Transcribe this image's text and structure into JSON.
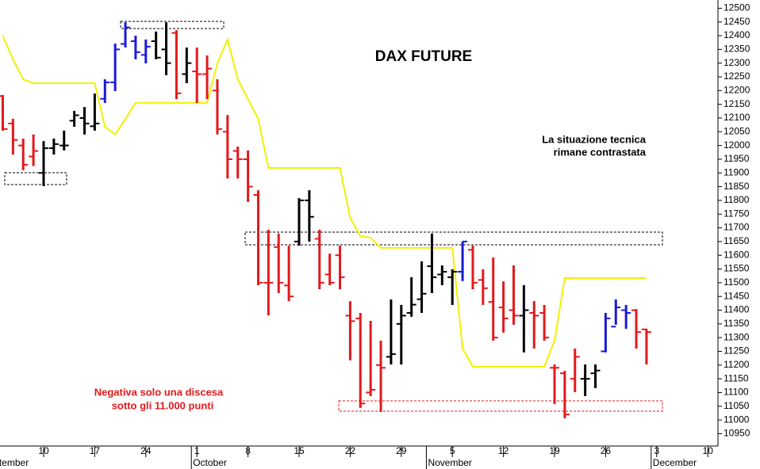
{
  "chart_data": {
    "type": "ohlc",
    "title": "DAX FUTURE",
    "annotations": [
      "La situazione tecnica",
      "rimane contrastata",
      "Negativa solo una discesa",
      "sotto gli 11.000 punti"
    ],
    "categories": [
      null,
      null,
      null,
      null,
      "10",
      null,
      null,
      null,
      null,
      "17",
      null,
      null,
      null,
      null,
      "24",
      null,
      null,
      null,
      null,
      "1",
      null,
      null,
      null,
      null,
      "8",
      null,
      null,
      null,
      null,
      "15",
      null,
      null,
      null,
      null,
      "22",
      null,
      null,
      null,
      null,
      "29",
      null,
      null,
      null,
      null,
      "5",
      null,
      null,
      null,
      null,
      "12",
      null,
      null,
      null,
      null,
      "19",
      null,
      null,
      null,
      null,
      "26",
      null,
      null,
      null,
      null,
      "3",
      null,
      null,
      null,
      null,
      "10"
    ],
    "month_labels": [
      "September",
      null,
      null,
      null,
      null,
      null,
      null,
      null,
      null,
      null,
      null,
      null,
      null,
      null,
      null,
      null,
      null,
      null,
      null,
      "October",
      null,
      null,
      null,
      null,
      null,
      null,
      null,
      null,
      null,
      null,
      null,
      null,
      null,
      null,
      null,
      null,
      null,
      null,
      null,
      null,
      null,
      null,
      "November",
      null,
      null,
      null,
      null,
      null,
      null,
      null,
      null,
      null,
      null,
      null,
      null,
      null,
      null,
      null,
      null,
      null,
      null,
      null,
      null,
      null,
      "December",
      null,
      null,
      null,
      null,
      null
    ],
    "open": [
      12180,
      12080,
      12000,
      11960,
      11900,
      11990,
      12000,
      12090,
      12100,
      12070,
      12170,
      12230,
      12370,
      12380,
      12330,
      12380,
      12350,
      12410,
      12260,
      12270,
      12260,
      12200,
      12050,
      11980,
      11950,
      11820,
      11500,
      11630,
      11490,
      11650,
      11800,
      11660,
      11530,
      11600,
      11380,
      11370,
      11100,
      11200,
      11230,
      11350,
      11390,
      11440,
      11560,
      11530,
      11520,
      11540,
      11620,
      11510,
      11430,
      11410,
      11400,
      11380,
      11390,
      11390,
      11190,
      11170,
      11150,
      11150,
      11170,
      11250,
      11340,
      11400,
      11400,
      11330,
      null,
      null,
      null,
      null,
      null,
      null
    ],
    "high": [
      12184,
      12097,
      12025,
      12040,
      12016,
      12025,
      12054,
      12126,
      12140,
      12189,
      12241,
      12371,
      12449,
      12400,
      12386,
      12415,
      12449,
      12420,
      12357,
      12357,
      12328,
      12241,
      12111,
      11996,
      11982,
      11837,
      11693,
      11679,
      11635,
      11808,
      11837,
      11693,
      11606,
      11635,
      11433,
      11390,
      11361,
      11289,
      11439,
      11419,
      11520,
      11578,
      11679,
      11563,
      11549,
      11650,
      11635,
      11549,
      11592,
      11505,
      11563,
      11491,
      11433,
      11419,
      11202,
      11179,
      11260,
      11202,
      11202,
      11390,
      11439,
      11419,
      11404,
      11332,
      null,
      null,
      null,
      null,
      null,
      null
    ],
    "low": [
      12054,
      11967,
      11910,
      11925,
      11852,
      11967,
      11982,
      12068,
      12040,
      12054,
      12155,
      12198,
      12357,
      12314,
      12299,
      12314,
      12256,
      12169,
      12227,
      12155,
      12169,
      12040,
      11880,
      11880,
      11794,
      11491,
      11381,
      11462,
      11433,
      11635,
      11650,
      11476,
      11491,
      11476,
      11217,
      11044,
      11087,
      11029,
      11202,
      11202,
      11376,
      11390,
      11462,
      11491,
      11419,
      11506,
      11476,
      11419,
      11289,
      11318,
      11347,
      11246,
      11260,
      11289,
      11058,
      11006,
      11101,
      11087,
      11116,
      11246,
      11347,
      11332,
      11260,
      11202,
      null,
      null,
      null,
      null,
      null,
      null
    ],
    "close": [
      12060,
      12020,
      11930,
      11980,
      11990,
      12005,
      12000,
      12110,
      12080,
      12080,
      12230,
      12350,
      12430,
      12340,
      12360,
      12320,
      12300,
      12190,
      12300,
      12260,
      12280,
      12060,
      11950,
      11950,
      11850,
      11500,
      11500,
      11500,
      11450,
      11800,
      11740,
      11500,
      11500,
      11520,
      11360,
      11060,
      11110,
      11190,
      11240,
      11380,
      11420,
      11460,
      11520,
      11540,
      11540,
      11650,
      11500,
      11480,
      11300,
      11370,
      11380,
      11400,
      11380,
      11300,
      11190,
      11020,
      11230,
      11150,
      11180,
      11370,
      11410,
      11390,
      11320,
      11320,
      null,
      null,
      null,
      null,
      null,
      null
    ],
    "colors": [
      "#e3191c",
      "#e3191c",
      "#e3191c",
      "#e3191c",
      "#000000",
      "#000000",
      "#000000",
      "#000000",
      "#000000",
      "#000000",
      "#1a1ad6",
      "#1a1ad6",
      "#1a1ad6",
      "#1a1ad6",
      "#1a1ad6",
      "#000000",
      "#000000",
      "#e3191c",
      "#000000",
      "#e3191c",
      "#e3191c",
      "#e3191c",
      "#e3191c",
      "#e3191c",
      "#e3191c",
      "#e3191c",
      "#e3191c",
      "#e3191c",
      "#e3191c",
      "#000000",
      "#000000",
      "#e3191c",
      "#e3191c",
      "#e3191c",
      "#e3191c",
      "#e3191c",
      "#e3191c",
      "#e3191c",
      "#000000",
      "#000000",
      "#000000",
      "#000000",
      "#000000",
      "#000000",
      "#000000",
      "#1a1ad6",
      "#e3191c",
      "#e3191c",
      "#e3191c",
      "#e3191c",
      "#e3191c",
      "#000000",
      "#e3191c",
      "#e3191c",
      "#e3191c",
      "#e3191c",
      "#e3191c",
      "#000000",
      "#000000",
      "#1a1ad6",
      "#1a1ad6",
      "#1a1ad6",
      "#e3191c",
      "#e3191c",
      null,
      null,
      null,
      null,
      null,
      null
    ],
    "line": {
      "color": "#f2f200",
      "values": [
        12400,
        12314,
        12241,
        12227,
        12227,
        12227,
        12227,
        12227,
        12227,
        12227,
        12068,
        12040,
        12097,
        12155,
        12155,
        12155,
        12155,
        12155,
        12155,
        12155,
        12155,
        12299,
        12386,
        12241,
        12169,
        12097,
        11918,
        11918,
        11918,
        11918,
        11918,
        11918,
        11918,
        11918,
        11736,
        11670,
        11664,
        11627,
        11627,
        11627,
        11627,
        11627,
        11627,
        11627,
        11627,
        11260,
        11194,
        11194,
        11194,
        11194,
        11194,
        11194,
        11194,
        11194,
        11289,
        11517,
        11517,
        11517,
        11517,
        11517,
        11517,
        11517,
        11517,
        11517,
        null,
        null,
        null,
        null,
        null,
        null
      ]
    },
    "ylim": [
      10905,
      12530
    ],
    "yticks": [
      10950,
      11000,
      11050,
      11100,
      11150,
      11200,
      11250,
      11300,
      11350,
      11400,
      11450,
      11500,
      11550,
      11600,
      11650,
      11700,
      11750,
      11800,
      11850,
      11900,
      11950,
      12000,
      12050,
      12100,
      12150,
      12200,
      12250,
      12300,
      12350,
      12400,
      12450,
      12500
    ]
  }
}
